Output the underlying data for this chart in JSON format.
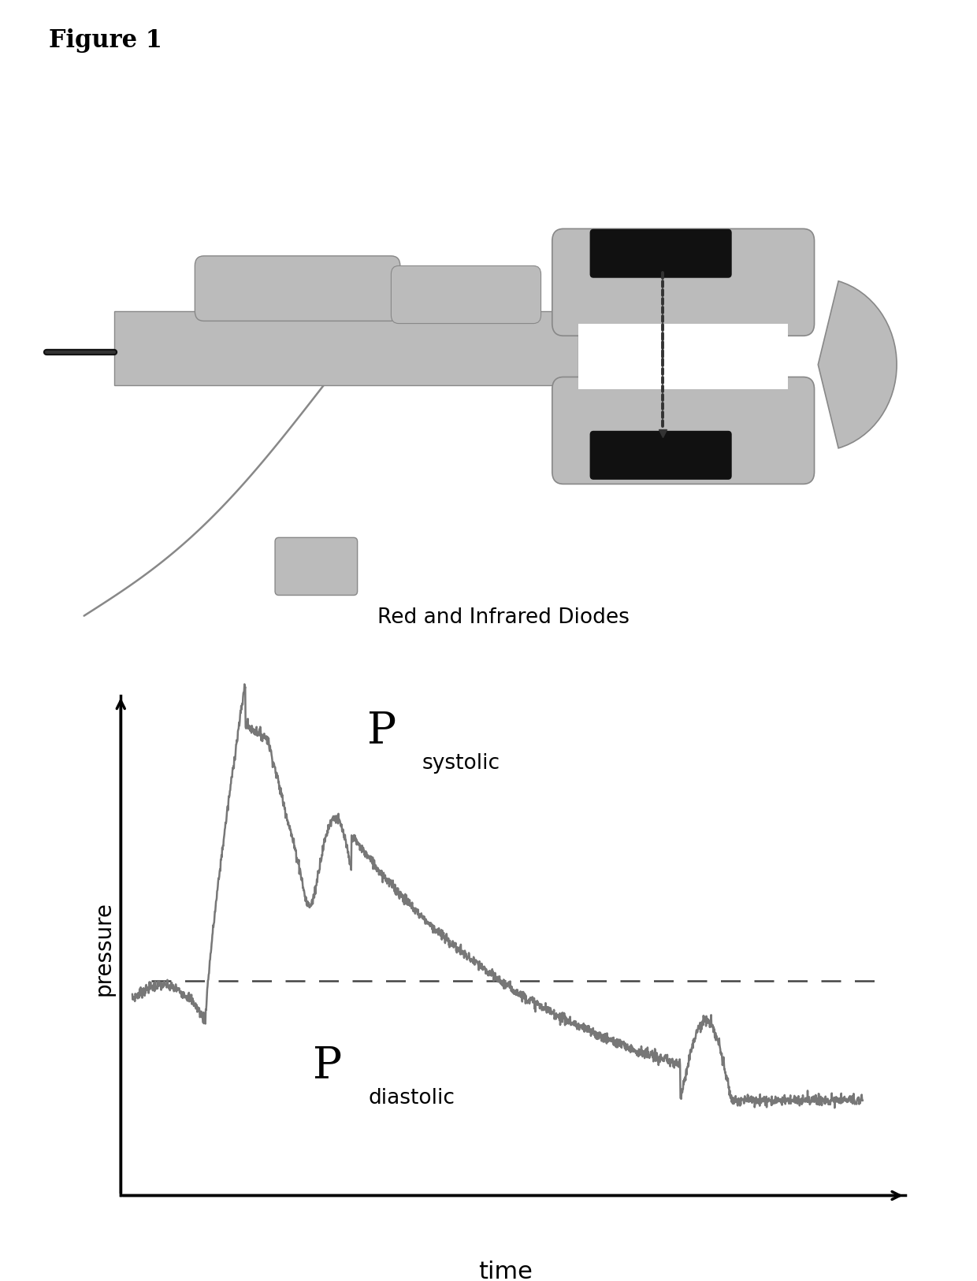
{
  "figure_title": "Figure 1",
  "title_fontsize": 22,
  "device_label": "Red and Infrared Diodes",
  "device_label_fontsize": 19,
  "ylabel": "pressure",
  "ylabel_fontsize": 20,
  "xlabel": "time",
  "xlabel_fontsize": 22,
  "background_color": "#ffffff",
  "curve_color": "#777777",
  "axis_color": "#000000",
  "dashed_color": "#444444",
  "gray_light": "#bbbbbb",
  "gray_dark": "#555555",
  "black": "#111111"
}
